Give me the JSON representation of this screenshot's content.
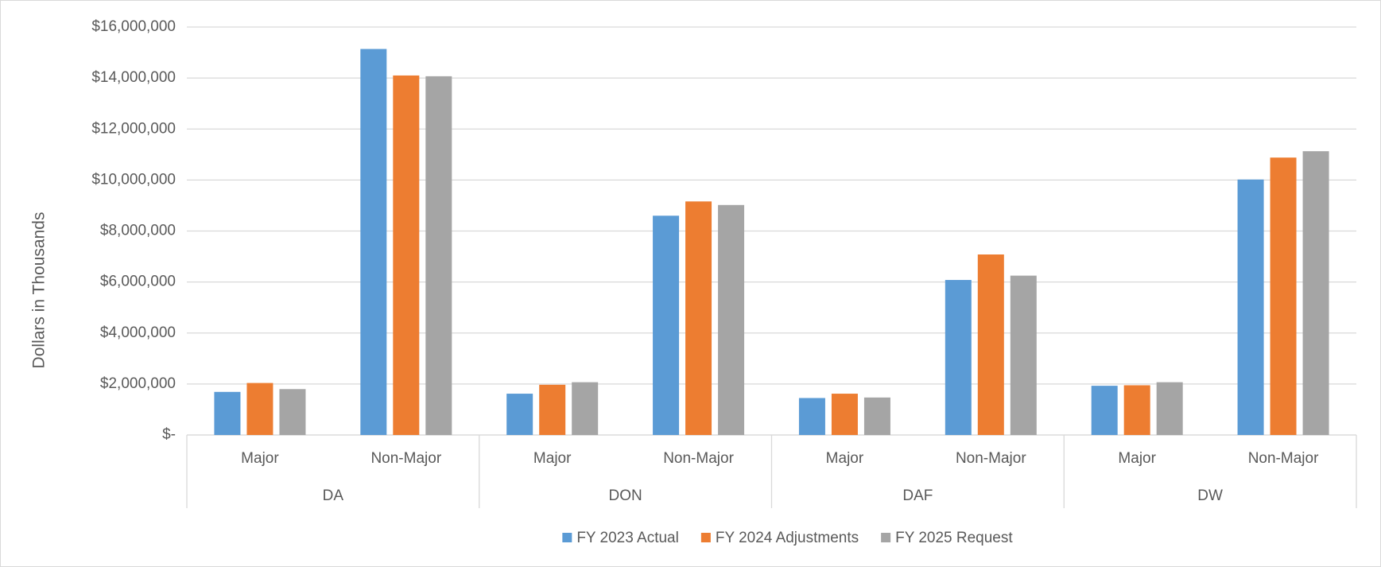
{
  "chart_data": {
    "type": "bar",
    "y_label": "Dollars in Thousands",
    "categories": [
      "Major",
      "Non-Major",
      "Major",
      "Non-Major",
      "Major",
      "Non-Major",
      "Major",
      "Non-Major"
    ],
    "groups": [
      "DA",
      "DON",
      "DAF",
      "DW"
    ],
    "series": [
      {
        "name": "FY 2023 Actual",
        "color": "#5b9bd5",
        "values": [
          1690000,
          15140000,
          1620000,
          8600000,
          1450000,
          6080000,
          1930000,
          10020000
        ]
      },
      {
        "name": "FY 2024 Adjustments",
        "color": "#ed7d31",
        "values": [
          2040000,
          14100000,
          1970000,
          9160000,
          1620000,
          7080000,
          1950000,
          10880000
        ]
      },
      {
        "name": "FY 2025 Request",
        "color": "#a5a5a5",
        "values": [
          1800000,
          14070000,
          2070000,
          9020000,
          1470000,
          6250000,
          2070000,
          11130000
        ]
      }
    ],
    "ylim": [
      0,
      16000000
    ],
    "yticks": [
      {
        "value": 0,
        "label": "$-"
      },
      {
        "value": 2000000,
        "label": "$2,000,000"
      },
      {
        "value": 4000000,
        "label": "$4,000,000"
      },
      {
        "value": 6000000,
        "label": "$6,000,000"
      },
      {
        "value": 8000000,
        "label": "$8,000,000"
      },
      {
        "value": 10000000,
        "label": "$10,000,000"
      },
      {
        "value": 12000000,
        "label": "$12,000,000"
      },
      {
        "value": 14000000,
        "label": "$14,000,000"
      },
      {
        "value": 16000000,
        "label": "$16,000,000"
      }
    ],
    "grid": true,
    "legend": "bottom"
  }
}
